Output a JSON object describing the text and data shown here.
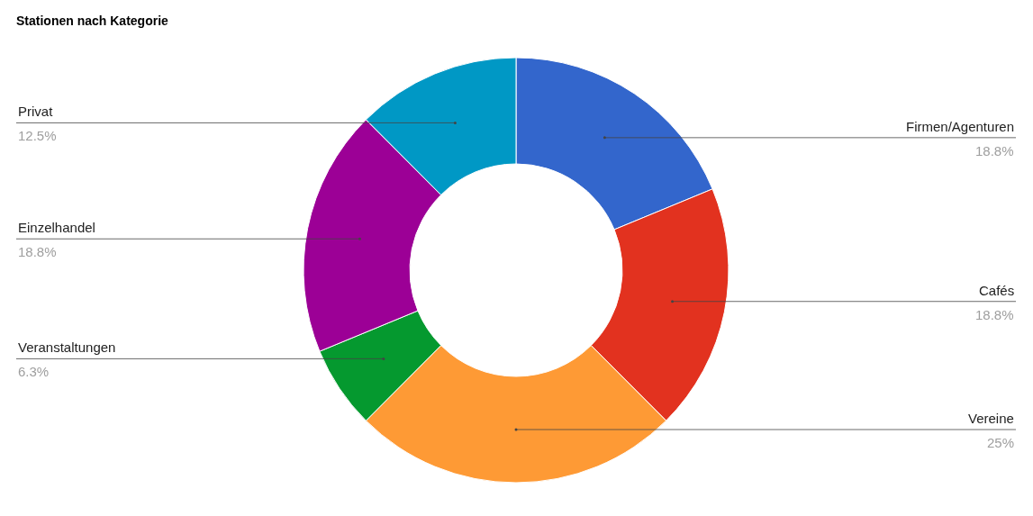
{
  "chart_data": {
    "type": "donut",
    "title": "Stationen nach Kategorie",
    "categories": [
      "Firmen/Agenturen",
      "Cafés",
      "Vereine",
      "Veranstaltungen",
      "Einzelhandel",
      "Privat"
    ],
    "values": [
      18.8,
      18.8,
      25,
      6.3,
      18.8,
      12.5
    ],
    "value_labels": [
      "18.8%",
      "18.8%",
      "25%",
      "6.3%",
      "18.8%",
      "12.5%"
    ],
    "colors": [
      "#3366cc",
      "#e2321f",
      "#fe9a35",
      "#05992f",
      "#9c0096",
      "#0098c5"
    ],
    "legend": false
  }
}
